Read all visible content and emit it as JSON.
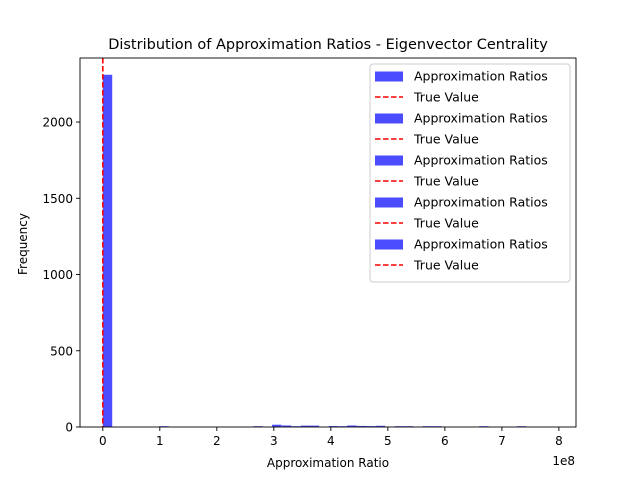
{
  "chart_data": {
    "type": "bar",
    "title": "Distribution of Approximation Ratios - Eigenvector Centrality",
    "xlabel": "Approximation Ratio",
    "ylabel": "Frequency",
    "x_offset_label": "1e8",
    "xlim": [
      -0.4,
      8.3
    ],
    "ylim": [
      0,
      2420
    ],
    "x_ticks": [
      0,
      1,
      2,
      3,
      4,
      5,
      6,
      7,
      8
    ],
    "y_ticks": [
      0,
      500,
      1000,
      1500,
      2000
    ],
    "bar_color": "#0000ff",
    "bar_alpha": 0.7,
    "bin_width": 0.165,
    "bins": [
      {
        "x": 0.0,
        "count": 2310
      },
      {
        "x": 0.99,
        "count": 2
      },
      {
        "x": 2.64,
        "count": 3
      },
      {
        "x": 2.97,
        "count": 15
      },
      {
        "x": 3.14,
        "count": 10
      },
      {
        "x": 3.3,
        "count": 4
      },
      {
        "x": 3.47,
        "count": 9
      },
      {
        "x": 3.63,
        "count": 9
      },
      {
        "x": 3.96,
        "count": 6
      },
      {
        "x": 4.13,
        "count": 4
      },
      {
        "x": 4.29,
        "count": 10
      },
      {
        "x": 4.46,
        "count": 7
      },
      {
        "x": 4.62,
        "count": 6
      },
      {
        "x": 4.79,
        "count": 8
      },
      {
        "x": 5.12,
        "count": 3
      },
      {
        "x": 5.28,
        "count": 4
      },
      {
        "x": 5.61,
        "count": 2
      },
      {
        "x": 5.78,
        "count": 4
      },
      {
        "x": 6.6,
        "count": 4
      },
      {
        "x": 7.26,
        "count": 2
      }
    ],
    "true_value": 0.0,
    "true_value_color": "#ff0000",
    "legend_position": "top-right",
    "legend": [
      {
        "label": "Approximation Ratios",
        "kind": "patch"
      },
      {
        "label": "True Value",
        "kind": "dashed-line"
      },
      {
        "label": "Approximation Ratios",
        "kind": "patch"
      },
      {
        "label": "True Value",
        "kind": "dashed-line"
      },
      {
        "label": "Approximation Ratios",
        "kind": "patch"
      },
      {
        "label": "True Value",
        "kind": "dashed-line"
      },
      {
        "label": "Approximation Ratios",
        "kind": "patch"
      },
      {
        "label": "True Value",
        "kind": "dashed-line"
      },
      {
        "label": "Approximation Ratios",
        "kind": "patch"
      },
      {
        "label": "True Value",
        "kind": "dashed-line"
      }
    ]
  }
}
